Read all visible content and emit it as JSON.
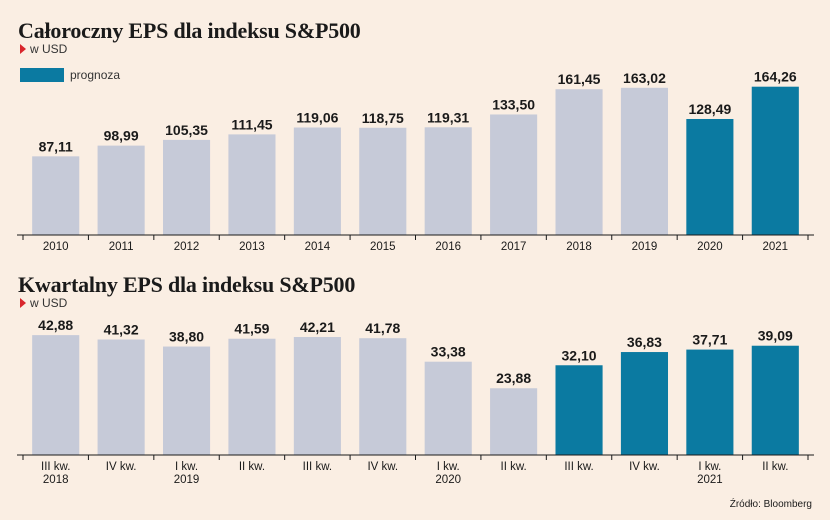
{
  "colors": {
    "historical": "#c6cad8",
    "forecast": "#0b7aa1",
    "background": "#faeee3",
    "marker": "#d9262c"
  },
  "legend": {
    "label": "prognoza"
  },
  "source": "Źródło: Bloomberg",
  "chart_data": [
    {
      "type": "bar",
      "title": "Całoroczny EPS dla indeksu S&P500",
      "unit": "w USD",
      "categories": [
        "2010",
        "2011",
        "2012",
        "2013",
        "2014",
        "2015",
        "2016",
        "2017",
        "2018",
        "2019",
        "2020",
        "2021"
      ],
      "values": [
        87.11,
        98.99,
        105.35,
        111.45,
        119.06,
        118.75,
        119.31,
        133.5,
        161.45,
        163.02,
        128.49,
        164.26
      ],
      "value_labels": [
        "87,11",
        "98,99",
        "105,35",
        "111,45",
        "119,06",
        "118,75",
        "119,31",
        "133,50",
        "161,45",
        "163,02",
        "128,49",
        "164,26"
      ],
      "forecast": [
        false,
        false,
        false,
        false,
        false,
        false,
        false,
        false,
        false,
        false,
        true,
        true
      ],
      "ylim": [
        0,
        175
      ]
    },
    {
      "type": "bar",
      "title": "Kwartalny EPS dla indeksu S&P500",
      "unit": "w USD",
      "categories": [
        [
          "III kw.",
          "2018"
        ],
        [
          "IV kw.",
          ""
        ],
        [
          "I kw.",
          "2019"
        ],
        [
          "II kw.",
          ""
        ],
        [
          "III kw.",
          ""
        ],
        [
          "IV kw.",
          ""
        ],
        [
          "I kw.",
          "2020"
        ],
        [
          "II kw.",
          ""
        ],
        [
          "III kw.",
          ""
        ],
        [
          "IV kw.",
          ""
        ],
        [
          "I kw.",
          "2021"
        ],
        [
          "II kw.",
          ""
        ]
      ],
      "values": [
        42.88,
        41.32,
        38.8,
        41.59,
        42.21,
        41.78,
        33.38,
        23.88,
        32.1,
        36.83,
        37.71,
        39.09
      ],
      "value_labels": [
        "42,88",
        "41,32",
        "38,80",
        "41,59",
        "42,21",
        "41,78",
        "33,38",
        "23,88",
        "32,10",
        "36,83",
        "37,71",
        "39,09"
      ],
      "forecast": [
        false,
        false,
        false,
        false,
        false,
        false,
        false,
        false,
        true,
        true,
        true,
        true
      ],
      "ylim": [
        0,
        44
      ]
    }
  ]
}
